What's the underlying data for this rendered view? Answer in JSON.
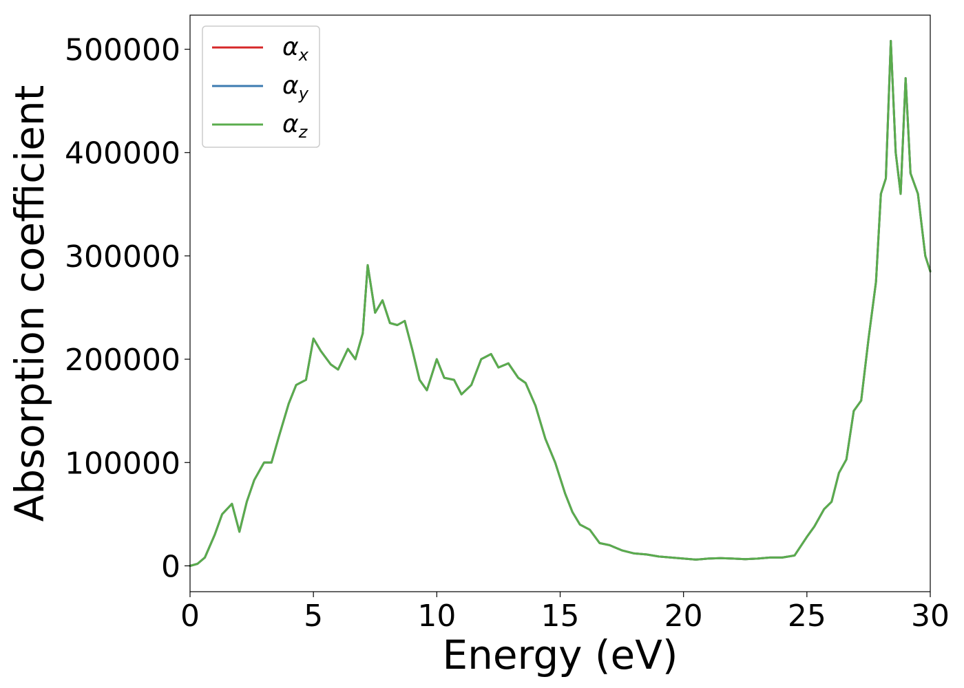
{
  "chart_data": {
    "type": "line",
    "xlabel": "Energy (eV)",
    "ylabel": "Absorption coefficient",
    "xlim": [
      0,
      30
    ],
    "ylim": [
      -25000,
      533000
    ],
    "xticks": [
      0,
      5,
      10,
      15,
      20,
      25,
      30
    ],
    "yticks": [
      0,
      100000,
      200000,
      300000,
      400000,
      500000
    ],
    "grid": false,
    "legend_position": "top-left",
    "series": [
      {
        "name": "α",
        "sub": "x",
        "color": "#d62728",
        "x": [
          0,
          0.3,
          0.6,
          1.0,
          1.3,
          1.7,
          2.0,
          2.3,
          2.6,
          3.0,
          3.3,
          3.6,
          4.0,
          4.3,
          4.7,
          5.0,
          5.3,
          5.7,
          6.0,
          6.4,
          6.7,
          7.0,
          7.2,
          7.5,
          7.8,
          8.1,
          8.4,
          8.7,
          9.0,
          9.3,
          9.6,
          10.0,
          10.3,
          10.7,
          11.0,
          11.4,
          11.8,
          12.2,
          12.5,
          12.9,
          13.3,
          13.6,
          14.0,
          14.4,
          14.8,
          15.2,
          15.5,
          15.8,
          16.2,
          16.6,
          17.0,
          17.5,
          18.0,
          18.5,
          19.0,
          19.5,
          20.0,
          20.5,
          21.0,
          21.5,
          22.0,
          22.5,
          23.0,
          23.5,
          24.0,
          24.5,
          25.0,
          25.3,
          25.7,
          26.0,
          26.3,
          26.6,
          26.9,
          27.2,
          27.5,
          27.8,
          28.0,
          28.2,
          28.4,
          28.6,
          28.8,
          29.0,
          29.2,
          29.5,
          29.8,
          30.0
        ],
        "y": [
          0,
          2000,
          8000,
          30000,
          50000,
          60000,
          33000,
          62000,
          83000,
          100000,
          100000,
          125000,
          157000,
          175000,
          180000,
          220000,
          208000,
          195000,
          190000,
          210000,
          200000,
          225000,
          291000,
          245000,
          257000,
          235000,
          233000,
          237000,
          210000,
          180000,
          170000,
          200000,
          182000,
          180000,
          166000,
          175000,
          200000,
          205000,
          192000,
          196000,
          182000,
          177000,
          155000,
          123000,
          100000,
          70000,
          52000,
          40000,
          35000,
          22000,
          20000,
          15000,
          12000,
          11000,
          9000,
          8000,
          7000,
          6000,
          7000,
          7500,
          7000,
          6500,
          7000,
          8000,
          8000,
          10000,
          28000,
          38000,
          55000,
          62000,
          90000,
          103000,
          150000,
          160000,
          220000,
          275000,
          360000,
          375000,
          508000,
          400000,
          360000,
          472000,
          380000,
          360000,
          300000,
          285000
        ]
      },
      {
        "name": "α",
        "sub": "y",
        "color": "#3c7bb0",
        "x": [
          0,
          0.3,
          0.6,
          1.0,
          1.3,
          1.7,
          2.0,
          2.3,
          2.6,
          3.0,
          3.3,
          3.6,
          4.0,
          4.3,
          4.7,
          5.0,
          5.3,
          5.7,
          6.0,
          6.4,
          6.7,
          7.0,
          7.2,
          7.5,
          7.8,
          8.1,
          8.4,
          8.7,
          9.0,
          9.3,
          9.6,
          10.0,
          10.3,
          10.7,
          11.0,
          11.4,
          11.8,
          12.2,
          12.5,
          12.9,
          13.3,
          13.6,
          14.0,
          14.4,
          14.8,
          15.2,
          15.5,
          15.8,
          16.2,
          16.6,
          17.0,
          17.5,
          18.0,
          18.5,
          19.0,
          19.5,
          20.0,
          20.5,
          21.0,
          21.5,
          22.0,
          22.5,
          23.0,
          23.5,
          24.0,
          24.5,
          25.0,
          25.3,
          25.7,
          26.0,
          26.3,
          26.6,
          26.9,
          27.2,
          27.5,
          27.8,
          28.0,
          28.2,
          28.4,
          28.6,
          28.8,
          29.0,
          29.2,
          29.5,
          29.8,
          30.0
        ],
        "y": [
          0,
          2000,
          8000,
          30000,
          50000,
          60000,
          33000,
          62000,
          83000,
          100000,
          100000,
          125000,
          157000,
          175000,
          180000,
          220000,
          208000,
          195000,
          190000,
          210000,
          200000,
          225000,
          291000,
          245000,
          257000,
          235000,
          233000,
          237000,
          210000,
          180000,
          170000,
          200000,
          182000,
          180000,
          166000,
          175000,
          200000,
          205000,
          192000,
          196000,
          182000,
          177000,
          155000,
          123000,
          100000,
          70000,
          52000,
          40000,
          35000,
          22000,
          20000,
          15000,
          12000,
          11000,
          9000,
          8000,
          7000,
          6000,
          7000,
          7500,
          7000,
          6500,
          7000,
          8000,
          8000,
          10000,
          28000,
          38000,
          55000,
          62000,
          90000,
          103000,
          150000,
          160000,
          220000,
          275000,
          360000,
          375000,
          508000,
          400000,
          360000,
          472000,
          380000,
          360000,
          300000,
          285000
        ]
      },
      {
        "name": "α",
        "sub": "z",
        "color": "#5aac4d",
        "x": [
          0,
          0.3,
          0.6,
          1.0,
          1.3,
          1.7,
          2.0,
          2.3,
          2.6,
          3.0,
          3.3,
          3.6,
          4.0,
          4.3,
          4.7,
          5.0,
          5.3,
          5.7,
          6.0,
          6.4,
          6.7,
          7.0,
          7.2,
          7.5,
          7.8,
          8.1,
          8.4,
          8.7,
          9.0,
          9.3,
          9.6,
          10.0,
          10.3,
          10.7,
          11.0,
          11.4,
          11.8,
          12.2,
          12.5,
          12.9,
          13.3,
          13.6,
          14.0,
          14.4,
          14.8,
          15.2,
          15.5,
          15.8,
          16.2,
          16.6,
          17.0,
          17.5,
          18.0,
          18.5,
          19.0,
          19.5,
          20.0,
          20.5,
          21.0,
          21.5,
          22.0,
          22.5,
          23.0,
          23.5,
          24.0,
          24.5,
          25.0,
          25.3,
          25.7,
          26.0,
          26.3,
          26.6,
          26.9,
          27.2,
          27.5,
          27.8,
          28.0,
          28.2,
          28.4,
          28.6,
          28.8,
          29.0,
          29.2,
          29.5,
          29.8,
          30.0
        ],
        "y": [
          0,
          2000,
          8000,
          30000,
          50000,
          60000,
          33000,
          62000,
          83000,
          100000,
          100000,
          125000,
          157000,
          175000,
          180000,
          220000,
          208000,
          195000,
          190000,
          210000,
          200000,
          225000,
          291000,
          245000,
          257000,
          235000,
          233000,
          237000,
          210000,
          180000,
          170000,
          200000,
          182000,
          180000,
          166000,
          175000,
          200000,
          205000,
          192000,
          196000,
          182000,
          177000,
          155000,
          123000,
          100000,
          70000,
          52000,
          40000,
          35000,
          22000,
          20000,
          15000,
          12000,
          11000,
          9000,
          8000,
          7000,
          6000,
          7000,
          7500,
          7000,
          6500,
          7000,
          8000,
          8000,
          10000,
          28000,
          38000,
          55000,
          62000,
          90000,
          103000,
          150000,
          160000,
          220000,
          275000,
          360000,
          375000,
          508000,
          400000,
          360000,
          472000,
          380000,
          360000,
          300000,
          285000
        ]
      }
    ]
  }
}
